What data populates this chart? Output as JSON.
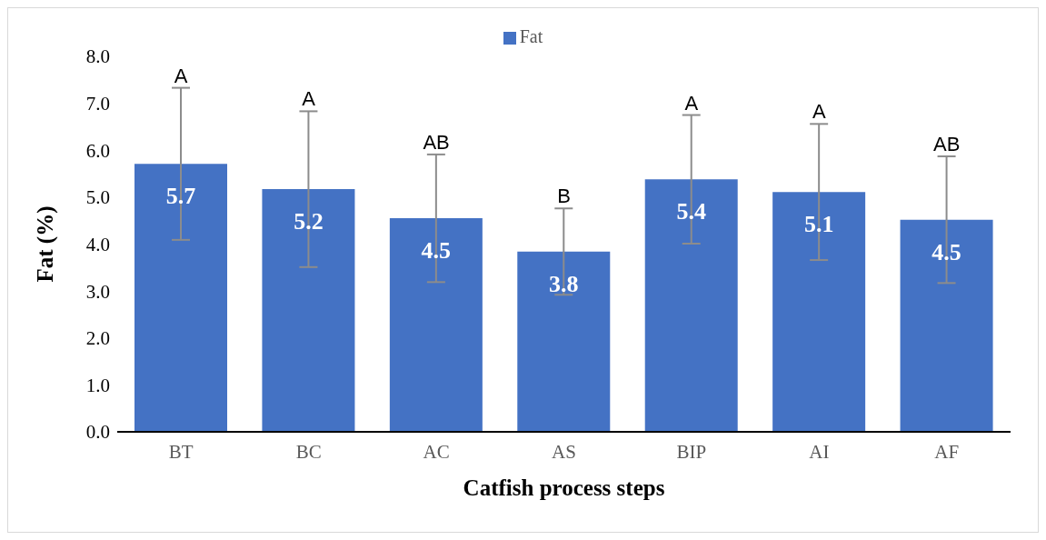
{
  "chart_data": {
    "type": "bar",
    "xlabel": "Catfish process steps",
    "ylabel": "Fat (%)",
    "categories": [
      "BT",
      "BC",
      "AC",
      "AS",
      "BIP",
      "AI",
      "AF"
    ],
    "series": [
      {
        "name": "Fat",
        "color": "#4472c4",
        "values": [
          5.71,
          5.17,
          4.55,
          3.84,
          5.38,
          5.11,
          4.52
        ],
        "errors": [
          1.62,
          1.66,
          1.36,
          0.92,
          1.37,
          1.45,
          1.35
        ],
        "value_labels": [
          "5.7",
          "5.2",
          "4.5",
          "3.8",
          "5.4",
          "5.1",
          "4.5"
        ]
      }
    ],
    "ylim": [
      0,
      8
    ],
    "yticks": [
      {
        "value": 0,
        "label": "0.0"
      },
      {
        "value": 1,
        "label": "1.0"
      },
      {
        "value": 2,
        "label": "2.0"
      },
      {
        "value": 3,
        "label": "3.0"
      },
      {
        "value": 4,
        "label": "4.0"
      },
      {
        "value": 5,
        "label": "5.0"
      },
      {
        "value": 6,
        "label": "6.0"
      },
      {
        "value": 7,
        "label": "7.0"
      },
      {
        "value": 8,
        "label": "8.0"
      }
    ],
    "grid": false,
    "legend": "top",
    "annotations": [
      {
        "text": "A",
        "x": "BT",
        "y": 7.33
      },
      {
        "text": "A",
        "x": "BC",
        "y": 6.83
      },
      {
        "text": "AB",
        "x": "AC",
        "y": 5.91
      },
      {
        "text": "B",
        "x": "AS",
        "y": 4.76
      },
      {
        "text": "A",
        "x": "BIP",
        "y": 6.75
      },
      {
        "text": "A",
        "x": "AI",
        "y": 6.56
      },
      {
        "text": "AB",
        "x": "AF",
        "y": 5.87
      }
    ]
  }
}
